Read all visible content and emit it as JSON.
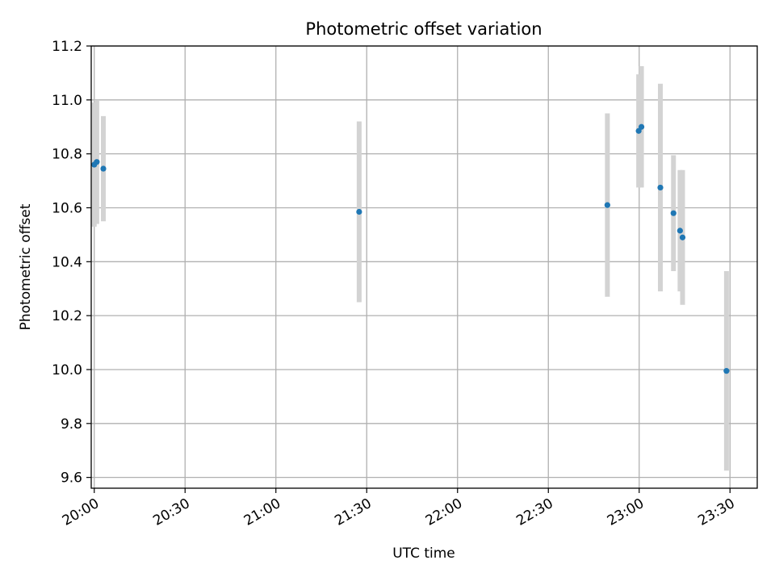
{
  "chart_data": {
    "type": "scatter",
    "title": "Photometric offset variation",
    "xlabel": "UTC time",
    "ylabel": "Photometric offset",
    "x_axis": "time",
    "xlim": [
      "19:59:00",
      "23:39:00"
    ],
    "ylim": [
      9.56,
      11.2
    ],
    "grid": true,
    "x_ticks": [
      "20:00",
      "20:30",
      "21:00",
      "21:30",
      "22:00",
      "22:30",
      "23:00",
      "23:30"
    ],
    "y_ticks": [
      9.6,
      9.8,
      10.0,
      10.2,
      10.4,
      10.6,
      10.8,
      11.0,
      11.2
    ],
    "point_color": "#1f77b4",
    "errorbar_color": "#d3d3d3",
    "points": [
      {
        "x": "20:00:00",
        "y": 10.76,
        "yerr": 0.23
      },
      {
        "x": "20:00:50",
        "y": 10.77,
        "yerr": 0.23
      },
      {
        "x": "20:03:00",
        "y": 10.745,
        "yerr": 0.195
      },
      {
        "x": "21:27:30",
        "y": 10.585,
        "yerr": 0.335
      },
      {
        "x": "22:49:30",
        "y": 10.61,
        "yerr": 0.34
      },
      {
        "x": "22:59:50",
        "y": 10.885,
        "yerr": 0.21
      },
      {
        "x": "23:00:45",
        "y": 10.9,
        "yerr": 0.225
      },
      {
        "x": "23:07:00",
        "y": 10.675,
        "yerr": 0.385
      },
      {
        "x": "23:11:20",
        "y": 10.58,
        "yerr": 0.215
      },
      {
        "x": "23:13:30",
        "y": 10.515,
        "yerr": 0.225
      },
      {
        "x": "23:14:20",
        "y": 10.49,
        "yerr": 0.25
      },
      {
        "x": "23:28:50",
        "y": 9.995,
        "yerr": 0.37
      }
    ]
  }
}
